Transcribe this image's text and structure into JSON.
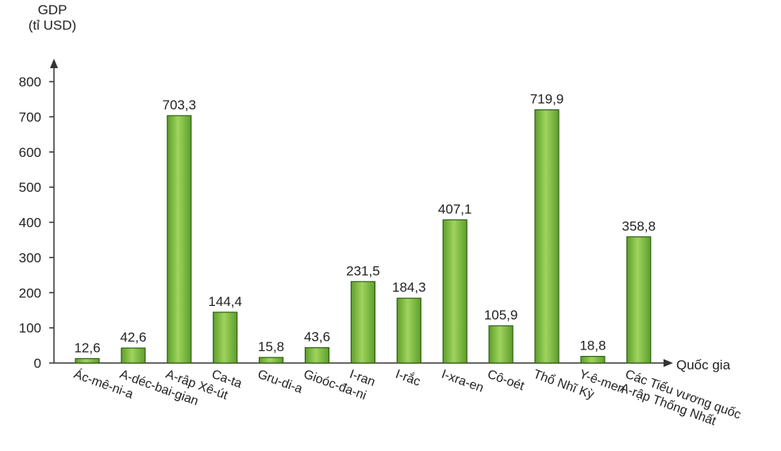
{
  "chart_data": {
    "type": "bar",
    "y_label": "GDP\n(tỉ USD)",
    "x_label": "Quốc gia",
    "categories": [
      "Ác-mê-ni-a",
      "A-déc-bai-gian",
      "A-râp Xê-út",
      "Ca-ta",
      "Gru-di-a",
      "Gioóc-đa-ni",
      "I-ran",
      "I-rắc",
      "I-xra-en",
      "Cô-oét",
      "Thổ Nhĩ Kỳ",
      "Y-ê-men",
      "Các Tiểu vương quốc\nA-rập Thống Nhất"
    ],
    "values": [
      12.6,
      42.6,
      703.3,
      144.4,
      15.8,
      43.6,
      231.5,
      184.3,
      407.1,
      105.9,
      719.9,
      18.8,
      358.8
    ],
    "value_labels": [
      "12,6",
      "42,6",
      "703,3",
      "144,4",
      "15,8",
      "43,6",
      "231,5",
      "184,3",
      "407,1",
      "105,9",
      "719,9",
      "18,8",
      "358,8"
    ],
    "color": "#7cc043",
    "ylim": [
      0,
      800
    ],
    "yticks": [
      0,
      100,
      200,
      300,
      400,
      500,
      600,
      700,
      800
    ]
  }
}
